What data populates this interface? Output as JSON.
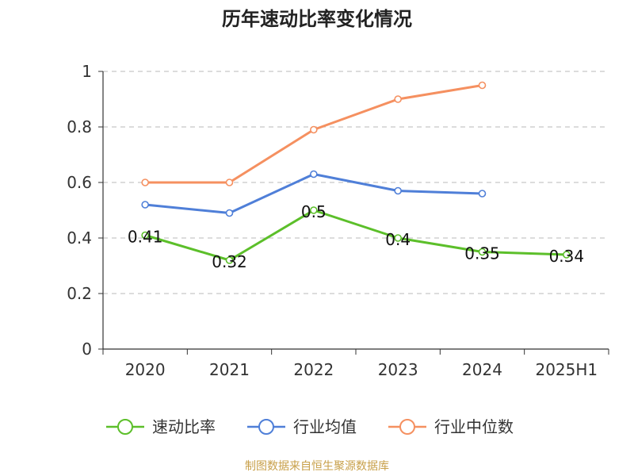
{
  "chart_data": {
    "type": "line",
    "title": "历年速动比率变化情况",
    "categories": [
      "2020",
      "2021",
      "2022",
      "2023",
      "2024",
      "2025H1"
    ],
    "ylim": [
      0,
      1
    ],
    "yticks": [
      "0",
      "0.2",
      "0.4",
      "0.6",
      "0.8",
      "1"
    ],
    "grid": "horizontal-dashed",
    "legend_position": "bottom",
    "series": [
      {
        "name": "速动比率",
        "color": "#5cbf2a",
        "values": [
          0.41,
          0.32,
          0.5,
          0.4,
          0.35,
          0.34
        ],
        "labels": [
          "0.41",
          "0.32",
          "0.5",
          "0.4",
          "0.35",
          "0.34"
        ]
      },
      {
        "name": "行业均值",
        "color": "#4f7fd8",
        "values": [
          0.52,
          0.49,
          0.63,
          0.57,
          0.56,
          null
        ]
      },
      {
        "name": "行业中位数",
        "color": "#f59060",
        "values": [
          0.6,
          0.6,
          0.79,
          0.9,
          0.95,
          null
        ]
      }
    ],
    "source": "制图数据来自恒生聚源数据库"
  }
}
